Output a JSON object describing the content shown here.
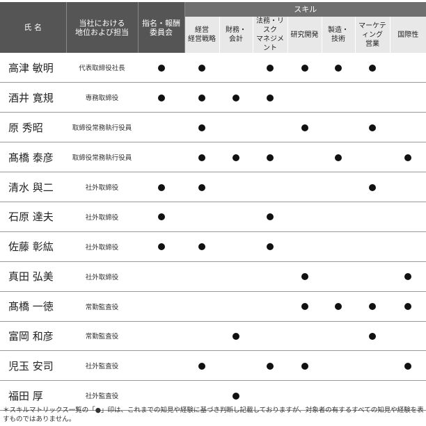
{
  "header": {
    "name": "氏 名",
    "position": "当社における\n地位および担当",
    "committee": "指名・報酬\n委員会",
    "skill": "スキル",
    "skills": [
      "経営\n経営戦略",
      "財務・\n会計",
      "法務・リスク\nマネジメント",
      "研究開発",
      "製造・\n技術",
      "マーケティング\n営業",
      "国際性"
    ]
  },
  "dot_symbol": "●",
  "rows": [
    {
      "name": "高津 敏明",
      "position": "代表取締役社長",
      "marks": [
        1,
        1,
        0,
        1,
        1,
        1,
        1,
        0
      ]
    },
    {
      "name": "酒井 寛規",
      "position": "専務取締役",
      "marks": [
        1,
        1,
        1,
        1,
        0,
        0,
        0,
        0
      ]
    },
    {
      "name": "原 秀昭",
      "position": "取締役常務執行役員",
      "marks": [
        0,
        1,
        0,
        0,
        1,
        0,
        1,
        0
      ]
    },
    {
      "name": "髙橋 泰彦",
      "position": "取締役常務執行役員",
      "marks": [
        0,
        1,
        1,
        1,
        0,
        1,
        0,
        1
      ]
    },
    {
      "name": "清水 與二",
      "position": "社外取締役",
      "marks": [
        1,
        1,
        0,
        0,
        0,
        0,
        1,
        0
      ]
    },
    {
      "name": "石原 達夫",
      "position": "社外取締役",
      "marks": [
        1,
        0,
        0,
        1,
        0,
        0,
        0,
        0
      ]
    },
    {
      "name": "佐藤 彰紘",
      "position": "社外取締役",
      "marks": [
        1,
        1,
        0,
        1,
        0,
        0,
        0,
        0
      ]
    },
    {
      "name": "真田 弘美",
      "position": "社外取締役",
      "marks": [
        0,
        0,
        0,
        0,
        1,
        0,
        0,
        1
      ]
    },
    {
      "name": "髙橋 一徳",
      "position": "常勤監査役",
      "marks": [
        0,
        0,
        0,
        0,
        1,
        1,
        1,
        1
      ]
    },
    {
      "name": "富岡 和彦",
      "position": "常勤監査役",
      "marks": [
        0,
        0,
        1,
        0,
        0,
        0,
        1,
        0
      ]
    },
    {
      "name": "児玉 安司",
      "position": "社外監査役",
      "marks": [
        0,
        1,
        0,
        1,
        1,
        0,
        0,
        1
      ]
    },
    {
      "name": "福田 厚",
      "position": "社外監査役",
      "marks": [
        0,
        0,
        1,
        0,
        0,
        0,
        0,
        0
      ]
    }
  ],
  "footnote": "＊スキルマトリックス一覧の「●」印は、これまでの知見や経験に基づき判断し記載しておりますが、対象者の有するすべての知見や経験を表すものではありません。"
}
